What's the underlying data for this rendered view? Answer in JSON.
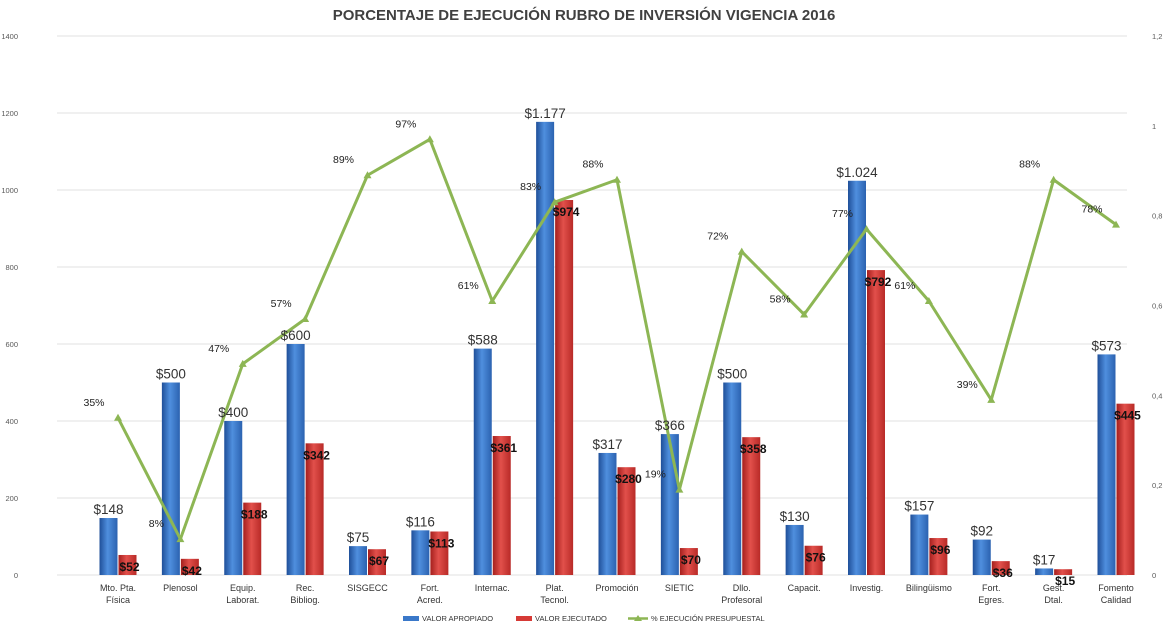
{
  "chart_data": {
    "type": "bar",
    "title": "PORCENTAJE DE EJECUCIÓN RUBRO DE INVERSIÓN VIGENCIA 2016",
    "categories": [
      [
        "Mto. Pta.",
        "Física"
      ],
      [
        "Plenosol"
      ],
      [
        "Equip.",
        "Laborat."
      ],
      [
        "Rec.",
        "Bibliog."
      ],
      [
        "SISGECC"
      ],
      [
        "Fort.",
        "Acred."
      ],
      [
        "Internac."
      ],
      [
        "Plat.",
        "Tecnol."
      ],
      [
        "Promoción"
      ],
      [
        "SIETIC"
      ],
      [
        "Dllo.",
        "Profesoral"
      ],
      [
        "Capacit."
      ],
      [
        "Investig."
      ],
      [
        "Bilingüismo"
      ],
      [
        "Fort.",
        "Egres."
      ],
      [
        "Gest.",
        "Dtal."
      ],
      [
        "Fomento",
        "Calidad"
      ]
    ],
    "series": [
      {
        "name": "VALOR APROPIADO",
        "type": "bar",
        "axis": "left",
        "color": "#3a78c9",
        "values": [
          148,
          500,
          400,
          600,
          75,
          116,
          588,
          1177,
          317,
          366,
          500,
          130,
          1024,
          157,
          92,
          17,
          573
        ],
        "labels": [
          "$148",
          "$500",
          "$400",
          "$600",
          "$75",
          "$116",
          "$588",
          "$1.177",
          "$317",
          "$366",
          "$500",
          "$130",
          "$1.024",
          "$157",
          "$92",
          "$17",
          "$573"
        ]
      },
      {
        "name": "VALOR EJECUTADO",
        "type": "bar",
        "axis": "left",
        "color": "#d63a36",
        "values": [
          52,
          42,
          188,
          342,
          67,
          113,
          361,
          974,
          280,
          70,
          358,
          76,
          792,
          96,
          36,
          15,
          445
        ],
        "labels": [
          "$52",
          "$42",
          "$188",
          "$342",
          "$67",
          "$113",
          "$361",
          "$974",
          "$280",
          "$70",
          "$358",
          "$76",
          "$792",
          "$96",
          "$36",
          "$15",
          "$445"
        ]
      },
      {
        "name": "% EJECUCIÓN PRESUPUESTAL",
        "type": "line",
        "axis": "right",
        "color": "#8db654",
        "values": [
          0.35,
          0.08,
          0.47,
          0.57,
          0.89,
          0.97,
          0.61,
          0.83,
          0.88,
          0.19,
          0.72,
          0.58,
          0.77,
          0.61,
          0.39,
          0.88,
          0.78
        ],
        "labels": [
          "35%",
          "8%",
          "47%",
          "57%",
          "89%",
          "97%",
          "61%",
          "83%",
          "88%",
          "19%",
          "72%",
          "58%",
          "77%",
          "61%",
          "39%",
          "88%",
          "78%"
        ]
      }
    ],
    "y_left": {
      "min": 0,
      "max": 1400,
      "ticks": [
        0,
        200,
        400,
        600,
        800,
        1000,
        1200,
        1400
      ],
      "tick_labels": [
        "0",
        "200",
        "400",
        "600",
        "800",
        "1000",
        "1200",
        "1400"
      ]
    },
    "y_right": {
      "min": 0,
      "max": 1.2,
      "ticks": [
        0,
        0.2,
        0.4,
        0.6,
        0.8,
        1.0,
        1.2
      ],
      "tick_labels": [
        "0",
        "0,2",
        "0,4",
        "0,6",
        "0,8",
        "1",
        "1,2"
      ]
    },
    "grid": true,
    "legend_position": "bottom"
  }
}
